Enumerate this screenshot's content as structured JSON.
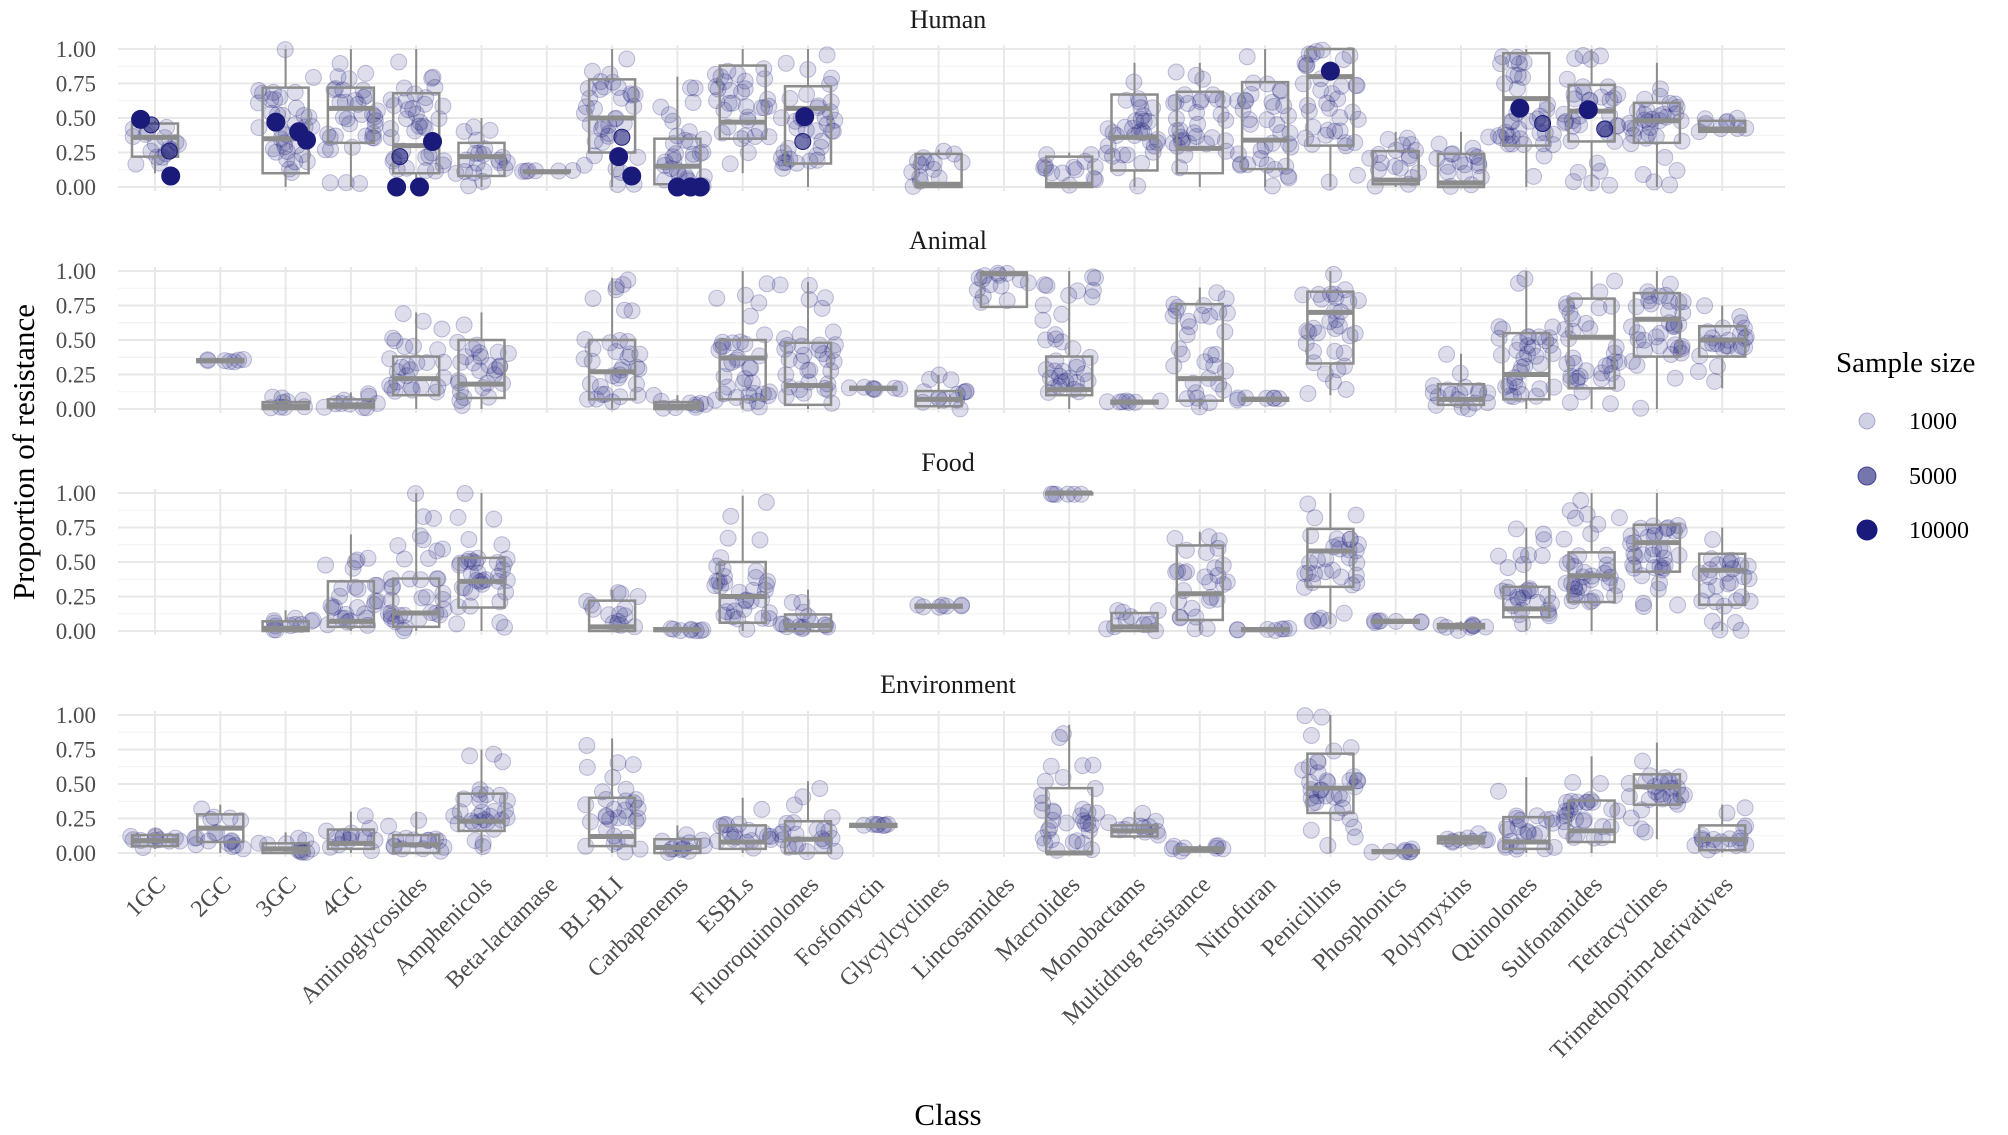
{
  "colors": {
    "point": "#1a1a7a",
    "box": "#8c8c8c",
    "grid": "#e8e8e8"
  },
  "chart_data": {
    "type": "boxplot-jitter",
    "xlabel": "Class",
    "ylabel": "Proportion of resistance",
    "ylim": [
      0,
      1
    ],
    "yticks": [
      "0.00",
      "0.25",
      "0.50",
      "0.75",
      "1.00"
    ],
    "categories": [
      "1GC",
      "2GC",
      "3GC",
      "4GC",
      "Aminoglycosides",
      "Amphenicols",
      "Beta-lactamase",
      "BL-BLI",
      "Carbapenems",
      "ESBLs",
      "Fluoroquinolones",
      "Fosfomycin",
      "Glycylcyclines",
      "Lincosamides",
      "Macrolides",
      "Monobactams",
      "Multidrug resistance",
      "Nitrofuran",
      "Penicillins",
      "Phosphonics",
      "Polymyxins",
      "Quinolones",
      "Sulfonamides",
      "Tetracyclines",
      "Trimethoprim-derivatives"
    ],
    "legend": {
      "title": "Sample size",
      "entries": [
        {
          "label": "1000",
          "value": 1000
        },
        {
          "label": "5000",
          "value": 5000
        },
        {
          "label": "10000",
          "value": 10000
        }
      ]
    },
    "panels": [
      {
        "title": "Human",
        "boxes": [
          {
            "cat": "1GC",
            "q1": 0.22,
            "median": 0.36,
            "q3": 0.46,
            "lo": 0.1,
            "hi": 0.48
          },
          {
            "cat": "3GC",
            "q1": 0.1,
            "median": 0.35,
            "q3": 0.72,
            "lo": 0.0,
            "hi": 1.0
          },
          {
            "cat": "4GC",
            "q1": 0.32,
            "median": 0.57,
            "q3": 0.72,
            "lo": 0.0,
            "hi": 1.0
          },
          {
            "cat": "Aminoglycosides",
            "q1": 0.1,
            "median": 0.3,
            "q3": 0.68,
            "lo": 0.0,
            "hi": 1.0
          },
          {
            "cat": "Amphenicols",
            "q1": 0.08,
            "median": 0.22,
            "q3": 0.32,
            "lo": 0.0,
            "hi": 0.5
          },
          {
            "cat": "Beta-lactamase",
            "q1": 0.11,
            "median": 0.11,
            "q3": 0.12,
            "lo": 0.11,
            "hi": 0.12
          },
          {
            "cat": "BL-BLI",
            "q1": 0.25,
            "median": 0.5,
            "q3": 0.78,
            "lo": 0.0,
            "hi": 1.0
          },
          {
            "cat": "Carbapenems",
            "q1": 0.02,
            "median": 0.15,
            "q3": 0.35,
            "lo": 0.0,
            "hi": 0.8
          },
          {
            "cat": "ESBLs",
            "q1": 0.35,
            "median": 0.47,
            "q3": 0.88,
            "lo": 0.1,
            "hi": 1.0
          },
          {
            "cat": "Fluoroquinolones",
            "q1": 0.17,
            "median": 0.57,
            "q3": 0.73,
            "lo": 0.0,
            "hi": 1.0
          },
          {
            "cat": "Glycylcyclines",
            "q1": 0.0,
            "median": 0.02,
            "q3": 0.24,
            "lo": 0.0,
            "hi": 0.27
          },
          {
            "cat": "Macrolides",
            "q1": 0.0,
            "median": 0.02,
            "q3": 0.22,
            "lo": 0.0,
            "hi": 0.25
          },
          {
            "cat": "Monobactams",
            "q1": 0.12,
            "median": 0.36,
            "q3": 0.67,
            "lo": 0.0,
            "hi": 0.9
          },
          {
            "cat": "Multidrug resistance",
            "q1": 0.1,
            "median": 0.28,
            "q3": 0.69,
            "lo": 0.0,
            "hi": 0.9
          },
          {
            "cat": "Nitrofuran",
            "q1": 0.13,
            "median": 0.34,
            "q3": 0.76,
            "lo": 0.0,
            "hi": 1.0
          },
          {
            "cat": "Penicillins",
            "q1": 0.3,
            "median": 0.8,
            "q3": 1.0,
            "lo": 0.0,
            "hi": 1.0
          },
          {
            "cat": "Phosphonics",
            "q1": 0.02,
            "median": 0.05,
            "q3": 0.26,
            "lo": 0.0,
            "hi": 0.4
          },
          {
            "cat": "Polymyxins",
            "q1": 0.0,
            "median": 0.03,
            "q3": 0.24,
            "lo": 0.0,
            "hi": 0.4
          },
          {
            "cat": "Quinolones",
            "q1": 0.3,
            "median": 0.64,
            "q3": 0.97,
            "lo": 0.0,
            "hi": 1.0
          },
          {
            "cat": "Sulfonamides",
            "q1": 0.33,
            "median": 0.55,
            "q3": 0.74,
            "lo": 0.0,
            "hi": 1.0
          },
          {
            "cat": "Tetracyclines",
            "q1": 0.32,
            "median": 0.48,
            "q3": 0.61,
            "lo": 0.0,
            "hi": 0.9
          },
          {
            "cat": "Trimethoprim-derivatives",
            "q1": 0.4,
            "median": 0.42,
            "q3": 0.48,
            "lo": 0.4,
            "hi": 0.5
          }
        ],
        "big_points": [
          {
            "cat": "1GC",
            "dx": -0.22,
            "y": 0.49,
            "n": 10000
          },
          {
            "cat": "1GC",
            "dx": -0.06,
            "y": 0.45,
            "n": 5000
          },
          {
            "cat": "1GC",
            "dx": 0.22,
            "y": 0.26,
            "n": 5000
          },
          {
            "cat": "1GC",
            "dx": 0.24,
            "y": 0.08,
            "n": 10000
          },
          {
            "cat": "3GC",
            "dx": -0.15,
            "y": 0.47,
            "n": 10000
          },
          {
            "cat": "3GC",
            "dx": 0.2,
            "y": 0.4,
            "n": 10000
          },
          {
            "cat": "3GC",
            "dx": 0.32,
            "y": 0.34,
            "n": 10000
          },
          {
            "cat": "Aminoglycosides",
            "dx": -0.3,
            "y": 0.0,
            "n": 10000
          },
          {
            "cat": "Aminoglycosides",
            "dx": 0.05,
            "y": 0.0,
            "n": 10000
          },
          {
            "cat": "Aminoglycosides",
            "dx": 0.25,
            "y": 0.33,
            "n": 10000
          },
          {
            "cat": "Aminoglycosides",
            "dx": -0.25,
            "y": 0.22,
            "n": 5000
          },
          {
            "cat": "BL-BLI",
            "dx": 0.15,
            "y": 0.36,
            "n": 5000
          },
          {
            "cat": "BL-BLI",
            "dx": 0.1,
            "y": 0.22,
            "n": 10000
          },
          {
            "cat": "BL-BLI",
            "dx": 0.3,
            "y": 0.08,
            "n": 10000
          },
          {
            "cat": "Carbapenems",
            "dx": 0.0,
            "y": 0.0,
            "n": 10000
          },
          {
            "cat": "Carbapenems",
            "dx": 0.2,
            "y": 0.0,
            "n": 10000
          },
          {
            "cat": "Carbapenems",
            "dx": 0.35,
            "y": 0.0,
            "n": 10000
          },
          {
            "cat": "Fluoroquinolones",
            "dx": -0.05,
            "y": 0.51,
            "n": 10000
          },
          {
            "cat": "Fluoroquinolones",
            "dx": -0.08,
            "y": 0.33,
            "n": 5000
          },
          {
            "cat": "Penicillins",
            "dx": 0.0,
            "y": 0.84,
            "n": 10000
          },
          {
            "cat": "Quinolones",
            "dx": -0.1,
            "y": 0.57,
            "n": 10000
          },
          {
            "cat": "Quinolones",
            "dx": 0.25,
            "y": 0.46,
            "n": 5000
          },
          {
            "cat": "Sulfonamides",
            "dx": -0.05,
            "y": 0.56,
            "n": 10000
          },
          {
            "cat": "Sulfonamides",
            "dx": 0.2,
            "y": 0.42,
            "n": 5000
          }
        ]
      },
      {
        "title": "Animal",
        "boxes": [
          {
            "cat": "2GC",
            "q1": 0.34,
            "median": 0.35,
            "q3": 0.36,
            "lo": 0.34,
            "hi": 0.36
          },
          {
            "cat": "3GC",
            "q1": 0.0,
            "median": 0.02,
            "q3": 0.05,
            "lo": 0.0,
            "hi": 0.1
          },
          {
            "cat": "4GC",
            "q1": 0.01,
            "median": 0.03,
            "q3": 0.07,
            "lo": 0.0,
            "hi": 0.12
          },
          {
            "cat": "Aminoglycosides",
            "q1": 0.1,
            "median": 0.22,
            "q3": 0.38,
            "lo": 0.0,
            "hi": 0.7
          },
          {
            "cat": "Amphenicols",
            "q1": 0.08,
            "median": 0.18,
            "q3": 0.5,
            "lo": 0.0,
            "hi": 0.7
          },
          {
            "cat": "BL-BLI",
            "q1": 0.07,
            "median": 0.27,
            "q3": 0.5,
            "lo": 0.0,
            "hi": 0.95
          },
          {
            "cat": "Carbapenems",
            "q1": 0.0,
            "median": 0.02,
            "q3": 0.05,
            "lo": 0.0,
            "hi": 0.1
          },
          {
            "cat": "ESBLs",
            "q1": 0.07,
            "median": 0.37,
            "q3": 0.5,
            "lo": 0.0,
            "hi": 1.0
          },
          {
            "cat": "Fluoroquinolones",
            "q1": 0.03,
            "median": 0.17,
            "q3": 0.48,
            "lo": 0.0,
            "hi": 0.92
          },
          {
            "cat": "Fosfomycin",
            "q1": 0.14,
            "median": 0.15,
            "q3": 0.16,
            "lo": 0.14,
            "hi": 0.16
          },
          {
            "cat": "Glycylcyclines",
            "q1": 0.02,
            "median": 0.07,
            "q3": 0.13,
            "lo": 0.0,
            "hi": 0.25
          },
          {
            "cat": "Lincosamides",
            "q1": 0.74,
            "median": 0.98,
            "q3": 0.99,
            "lo": 0.74,
            "hi": 1.0
          },
          {
            "cat": "Macrolides",
            "q1": 0.1,
            "median": 0.14,
            "q3": 0.38,
            "lo": 0.0,
            "hi": 1.0
          },
          {
            "cat": "Monobactams",
            "q1": 0.04,
            "median": 0.05,
            "q3": 0.06,
            "lo": 0.04,
            "hi": 0.06
          },
          {
            "cat": "Multidrug resistance",
            "q1": 0.06,
            "median": 0.22,
            "q3": 0.76,
            "lo": 0.0,
            "hi": 0.88
          },
          {
            "cat": "Nitrofuran",
            "q1": 0.06,
            "median": 0.07,
            "q3": 0.08,
            "lo": 0.06,
            "hi": 0.08
          },
          {
            "cat": "Penicillins",
            "q1": 0.33,
            "median": 0.7,
            "q3": 0.85,
            "lo": 0.1,
            "hi": 1.0
          },
          {
            "cat": "Polymyxins",
            "q1": 0.03,
            "median": 0.07,
            "q3": 0.18,
            "lo": 0.0,
            "hi": 0.4
          },
          {
            "cat": "Quinolones",
            "q1": 0.07,
            "median": 0.25,
            "q3": 0.55,
            "lo": 0.0,
            "hi": 1.0
          },
          {
            "cat": "Sulfonamides",
            "q1": 0.15,
            "median": 0.52,
            "q3": 0.8,
            "lo": 0.0,
            "hi": 1.0
          },
          {
            "cat": "Tetracyclines",
            "q1": 0.38,
            "median": 0.65,
            "q3": 0.84,
            "lo": 0.0,
            "hi": 1.0
          },
          {
            "cat": "Trimethoprim-derivatives",
            "q1": 0.38,
            "median": 0.5,
            "q3": 0.6,
            "lo": 0.15,
            "hi": 0.75
          }
        ],
        "big_points": []
      },
      {
        "title": "Food",
        "boxes": [
          {
            "cat": "3GC",
            "q1": 0.0,
            "median": 0.02,
            "q3": 0.07,
            "lo": 0.0,
            "hi": 0.15
          },
          {
            "cat": "4GC",
            "q1": 0.03,
            "median": 0.07,
            "q3": 0.36,
            "lo": 0.0,
            "hi": 0.7
          },
          {
            "cat": "Aminoglycosides",
            "q1": 0.03,
            "median": 0.13,
            "q3": 0.38,
            "lo": 0.0,
            "hi": 1.0
          },
          {
            "cat": "Amphenicols",
            "q1": 0.17,
            "median": 0.36,
            "q3": 0.53,
            "lo": 0.0,
            "hi": 1.0
          },
          {
            "cat": "BL-BLI",
            "q1": 0.0,
            "median": 0.03,
            "q3": 0.22,
            "lo": 0.0,
            "hi": 0.3
          },
          {
            "cat": "Carbapenems",
            "q1": 0.0,
            "median": 0.01,
            "q3": 0.02,
            "lo": 0.0,
            "hi": 0.05
          },
          {
            "cat": "ESBLs",
            "q1": 0.06,
            "median": 0.25,
            "q3": 0.5,
            "lo": 0.0,
            "hi": 0.98
          },
          {
            "cat": "Fluoroquinolones",
            "q1": 0.0,
            "median": 0.04,
            "q3": 0.12,
            "lo": 0.0,
            "hi": 0.3
          },
          {
            "cat": "Glycylcyclines",
            "q1": 0.17,
            "median": 0.18,
            "q3": 0.19,
            "lo": 0.17,
            "hi": 0.19
          },
          {
            "cat": "Macrolides",
            "q1": 0.99,
            "median": 1.0,
            "q3": 1.0,
            "lo": 0.99,
            "hi": 1.0
          },
          {
            "cat": "Monobactams",
            "q1": 0.0,
            "median": 0.03,
            "q3": 0.13,
            "lo": 0.0,
            "hi": 0.15
          },
          {
            "cat": "Multidrug resistance",
            "q1": 0.08,
            "median": 0.27,
            "q3": 0.62,
            "lo": 0.0,
            "hi": 0.72
          },
          {
            "cat": "Nitrofuran",
            "q1": 0.0,
            "median": 0.01,
            "q3": 0.02,
            "lo": 0.0,
            "hi": 0.03
          },
          {
            "cat": "Penicillins",
            "q1": 0.32,
            "median": 0.58,
            "q3": 0.74,
            "lo": 0.05,
            "hi": 1.0
          },
          {
            "cat": "Phosphonics",
            "q1": 0.06,
            "median": 0.07,
            "q3": 0.08,
            "lo": 0.06,
            "hi": 0.08
          },
          {
            "cat": "Polymyxins",
            "q1": 0.02,
            "median": 0.03,
            "q3": 0.05,
            "lo": 0.0,
            "hi": 0.07
          },
          {
            "cat": "Quinolones",
            "q1": 0.1,
            "median": 0.16,
            "q3": 0.32,
            "lo": 0.0,
            "hi": 0.75
          },
          {
            "cat": "Sulfonamides",
            "q1": 0.21,
            "median": 0.4,
            "q3": 0.57,
            "lo": 0.0,
            "hi": 1.0
          },
          {
            "cat": "Tetracyclines",
            "q1": 0.43,
            "median": 0.64,
            "q3": 0.77,
            "lo": 0.0,
            "hi": 1.0
          },
          {
            "cat": "Trimethoprim-derivatives",
            "q1": 0.19,
            "median": 0.44,
            "q3": 0.56,
            "lo": 0.0,
            "hi": 0.75
          }
        ],
        "big_points": []
      },
      {
        "title": "Environment",
        "boxes": [
          {
            "cat": "1GC",
            "q1": 0.05,
            "median": 0.09,
            "q3": 0.13,
            "lo": 0.03,
            "hi": 0.18
          },
          {
            "cat": "2GC",
            "q1": 0.08,
            "median": 0.18,
            "q3": 0.28,
            "lo": 0.0,
            "hi": 0.35
          },
          {
            "cat": "3GC",
            "q1": 0.0,
            "median": 0.03,
            "q3": 0.07,
            "lo": 0.0,
            "hi": 0.15
          },
          {
            "cat": "4GC",
            "q1": 0.03,
            "median": 0.07,
            "q3": 0.17,
            "lo": 0.0,
            "hi": 0.3
          },
          {
            "cat": "Aminoglycosides",
            "q1": 0.0,
            "median": 0.06,
            "q3": 0.13,
            "lo": 0.0,
            "hi": 0.3
          },
          {
            "cat": "Amphenicols",
            "q1": 0.16,
            "median": 0.23,
            "q3": 0.43,
            "lo": 0.0,
            "hi": 0.75
          },
          {
            "cat": "BL-BLI",
            "q1": 0.05,
            "median": 0.12,
            "q3": 0.4,
            "lo": 0.0,
            "hi": 0.83
          },
          {
            "cat": "Carbapenems",
            "q1": 0.0,
            "median": 0.04,
            "q3": 0.1,
            "lo": 0.0,
            "hi": 0.2
          },
          {
            "cat": "ESBLs",
            "q1": 0.03,
            "median": 0.08,
            "q3": 0.2,
            "lo": 0.0,
            "hi": 0.4
          },
          {
            "cat": "Fluoroquinolones",
            "q1": 0.0,
            "median": 0.1,
            "q3": 0.23,
            "lo": 0.0,
            "hi": 0.52
          },
          {
            "cat": "Fosfomycin",
            "q1": 0.19,
            "median": 0.2,
            "q3": 0.21,
            "lo": 0.19,
            "hi": 0.21
          },
          {
            "cat": "Macrolides",
            "q1": 0.0,
            "median": 0.0,
            "q3": 0.47,
            "lo": 0.0,
            "hi": 0.93
          },
          {
            "cat": "Monobactams",
            "q1": 0.12,
            "median": 0.16,
            "q3": 0.2,
            "lo": 0.1,
            "hi": 0.3
          },
          {
            "cat": "Multidrug resistance",
            "q1": 0.01,
            "median": 0.03,
            "q3": 0.04,
            "lo": 0.0,
            "hi": 0.06
          },
          {
            "cat": "Penicillins",
            "q1": 0.29,
            "median": 0.47,
            "q3": 0.72,
            "lo": 0.0,
            "hi": 1.0
          },
          {
            "cat": "Phosphonics",
            "q1": 0.0,
            "median": 0.01,
            "q3": 0.02,
            "lo": 0.0,
            "hi": 0.03
          },
          {
            "cat": "Polymyxins",
            "q1": 0.07,
            "median": 0.1,
            "q3": 0.12,
            "lo": 0.05,
            "hi": 0.15
          },
          {
            "cat": "Quinolones",
            "q1": 0.03,
            "median": 0.08,
            "q3": 0.26,
            "lo": 0.0,
            "hi": 0.55
          },
          {
            "cat": "Sulfonamides",
            "q1": 0.08,
            "median": 0.16,
            "q3": 0.38,
            "lo": 0.0,
            "hi": 0.7
          },
          {
            "cat": "Tetracyclines",
            "q1": 0.35,
            "median": 0.48,
            "q3": 0.57,
            "lo": 0.1,
            "hi": 0.8
          },
          {
            "cat": "Trimethoprim-derivatives",
            "q1": 0.02,
            "median": 0.1,
            "q3": 0.2,
            "lo": 0.0,
            "hi": 0.35
          }
        ],
        "big_points": []
      }
    ]
  }
}
